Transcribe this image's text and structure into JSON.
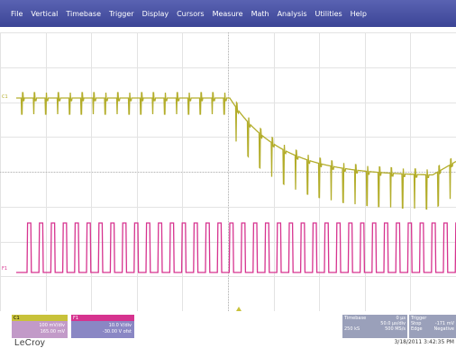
{
  "menu": [
    "File",
    "Vertical",
    "Timebase",
    "Trigger",
    "Display",
    "Cursors",
    "Measure",
    "Math",
    "Analysis",
    "Utilities",
    "Help"
  ],
  "traces": {
    "c1": {
      "marker": "C1",
      "color": "#b3ad2a"
    },
    "f1": {
      "marker": "F1",
      "color": "#d6338f"
    }
  },
  "channels": {
    "c1": {
      "label": "C1",
      "line1": "100 mV/div",
      "line2": "165.00 mV"
    },
    "f1": {
      "label": "F1",
      "line1": "10.0 V/div",
      "line2": "-30.00 V ofst"
    }
  },
  "timebase": {
    "label": "Timebase",
    "value": "0 µs",
    "rate": "50.0 µs/div",
    "samples": "250 kS",
    "sample_rate": "500 MS/s"
  },
  "trigger": {
    "label": "Trigger",
    "mode": "Stop",
    "level": "-171 mV",
    "type": "Edge",
    "slope": "Negative"
  },
  "brand": "LeCroy",
  "datetime": "3/18/2011 3:42:35 PM"
}
